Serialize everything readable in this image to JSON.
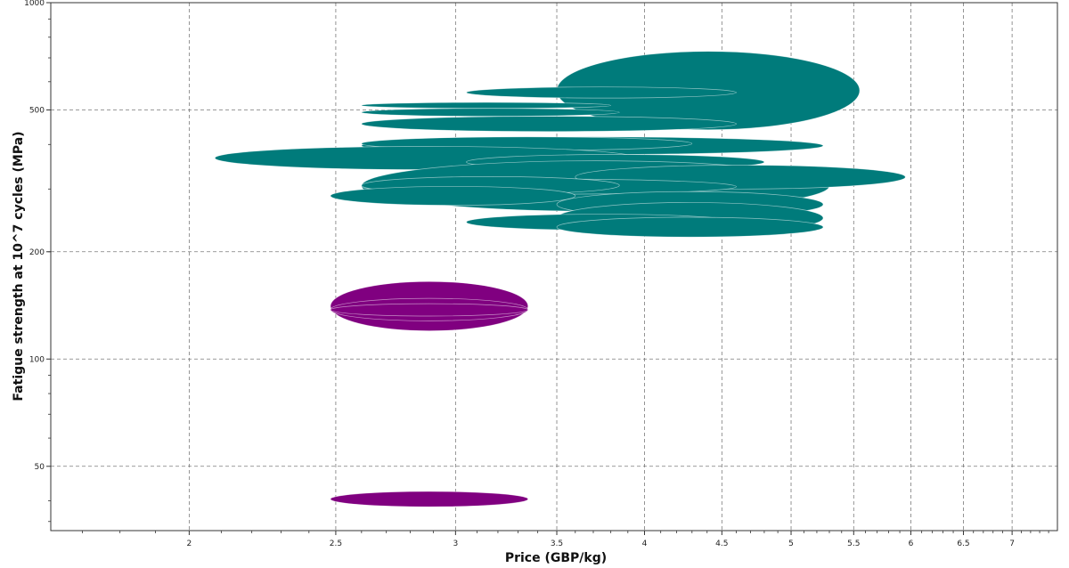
{
  "chart_data": {
    "type": "scatter",
    "subtype": "bubble-ellipses (Ashby property chart)",
    "xlabel": "Price (GBP/kg)",
    "ylabel": "Fatigue strength at 10^7 cycles (MPa)",
    "x_scale": "log",
    "y_scale": "log",
    "xlim": [
      1.62,
      7.5
    ],
    "ylim": [
      33,
      1000
    ],
    "x_ticks": [
      "2",
      "2.5",
      "3",
      "3.5",
      "4",
      "4.5",
      "5",
      "5.5",
      "6",
      "6.5",
      "7"
    ],
    "y_ticks": [
      "1000",
      "500",
      "200",
      "100",
      "50"
    ],
    "grid": true,
    "series": [
      {
        "color": "#007b7b",
        "ranges": [
          {
            "x": [
              3.5,
              5.55
            ],
            "y": [
              440,
              730
            ]
          },
          {
            "x": [
              3.05,
              4.6
            ],
            "y": [
              540,
              580
            ]
          },
          {
            "x": [
              2.6,
              3.8
            ],
            "y": [
              505,
              525
            ]
          },
          {
            "x": [
              2.6,
              3.85
            ],
            "y": [
              480,
              505
            ]
          },
          {
            "x": [
              2.6,
              4.6
            ],
            "y": [
              435,
              480
            ]
          },
          {
            "x": [
              2.6,
              5.25
            ],
            "y": [
              375,
              420
            ]
          },
          {
            "x": [
              2.6,
              4.3
            ],
            "y": [
              385,
              420
            ]
          },
          {
            "x": [
              2.08,
              3.95
            ],
            "y": [
              340,
              395
            ]
          },
          {
            "x": [
              3.05,
              4.8
            ],
            "y": [
              340,
              375
            ]
          },
          {
            "x": [
              2.6,
              5.3
            ],
            "y": [
              260,
              360
            ]
          },
          {
            "x": [
              3.6,
              5.95
            ],
            "y": [
              300,
              350
            ]
          },
          {
            "x": [
              2.6,
              4.6
            ],
            "y": [
              290,
              320
            ]
          },
          {
            "x": [
              2.6,
              3.85
            ],
            "y": [
              290,
              325
            ]
          },
          {
            "x": [
              2.48,
              3.6
            ],
            "y": [
              270,
              305
            ]
          },
          {
            "x": [
              3.5,
              5.25
            ],
            "y": [
              250,
              295
            ]
          },
          {
            "x": [
              3.5,
              5.25
            ],
            "y": [
              225,
              275
            ]
          },
          {
            "x": [
              3.05,
              4.6
            ],
            "y": [
              230,
              255
            ]
          },
          {
            "x": [
              3.5,
              5.25
            ],
            "y": [
              220,
              250
            ]
          }
        ]
      },
      {
        "color": "#800080",
        "ranges": [
          {
            "x": [
              2.48,
              3.35
            ],
            "y": [
              120,
              165
            ]
          },
          {
            "x": [
              2.48,
              3.35
            ],
            "y": [
              128,
              148
            ]
          },
          {
            "x": [
              2.48,
              3.35
            ],
            "y": [
              132,
              143
            ]
          },
          {
            "x": [
              2.48,
              3.35
            ],
            "y": [
              38.5,
              42.5
            ]
          }
        ]
      }
    ]
  }
}
